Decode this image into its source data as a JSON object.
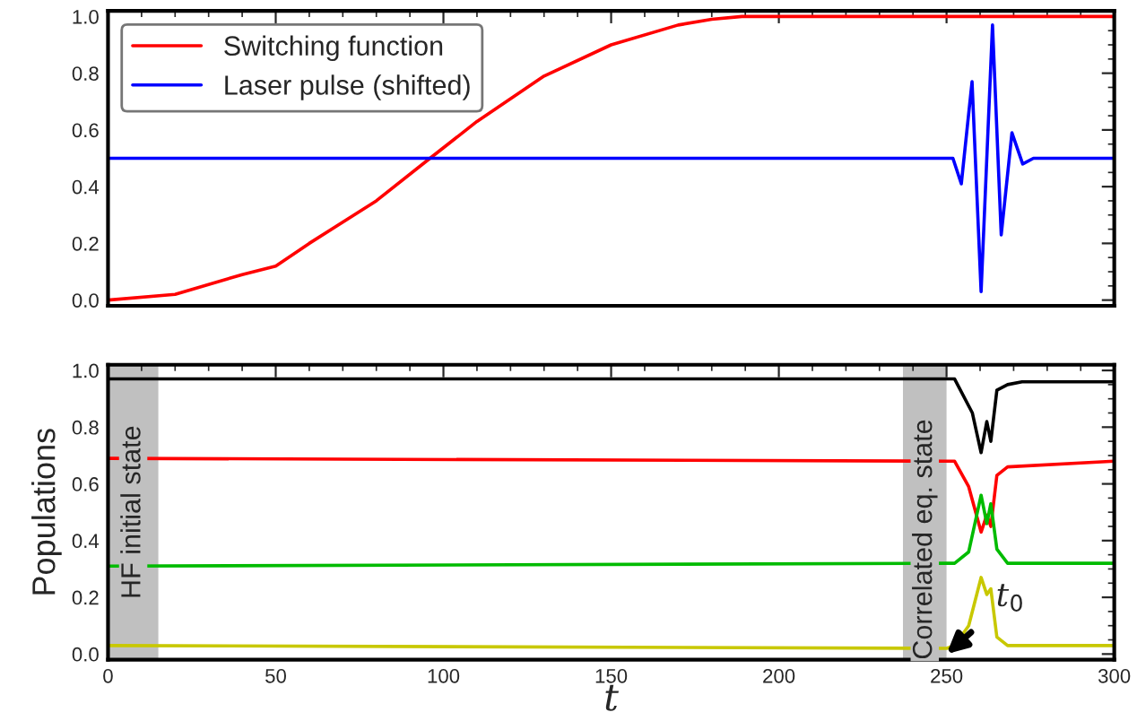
{
  "chart_data": [
    {
      "type": "line",
      "xlim": [
        0,
        300
      ],
      "ylim": [
        -0.02,
        1.02
      ],
      "yticks": [
        {
          "value": 0,
          "label": "0.0"
        },
        {
          "value": 0.2,
          "label": "0.2"
        },
        {
          "value": 0.4,
          "label": "0.4"
        },
        {
          "value": 0.6,
          "label": "0.6"
        },
        {
          "value": 0.8,
          "label": "0.8"
        },
        {
          "value": 1,
          "label": "1.0"
        }
      ],
      "xticks": [
        0,
        50,
        100,
        150,
        200,
        250,
        300
      ],
      "tick_labels": "y",
      "legend": "top left",
      "grid": false,
      "series": [
        {
          "name": "Switching function",
          "color": "#ff0000",
          "x": [
            0,
            20,
            40,
            50,
            60,
            80,
            96,
            110,
            130,
            150,
            170,
            180,
            189,
            200,
            300
          ],
          "values": [
            0,
            0.02,
            0.09,
            0.12,
            0.2,
            0.35,
            0.5,
            0.63,
            0.79,
            0.9,
            0.97,
            0.99,
            1,
            1,
            1
          ]
        },
        {
          "name": "Laser pulse (shifted)",
          "color": "#0000ff",
          "x": [
            0,
            251.9,
            254.4,
            257.6,
            260.3,
            263.7,
            266.3,
            269.5,
            272.7,
            275.9,
            300
          ],
          "values": [
            0.5,
            0.5,
            0.41,
            0.77,
            0.03,
            0.97,
            0.23,
            0.59,
            0.48,
            0.5,
            0.5
          ]
        }
      ]
    },
    {
      "type": "line",
      "xlim": [
        0,
        300
      ],
      "ylim": [
        -0.02,
        1.02
      ],
      "yticks": [
        {
          "value": 0,
          "label": "0.0"
        },
        {
          "value": 0.2,
          "label": "0.2"
        },
        {
          "value": 0.4,
          "label": "0.4"
        },
        {
          "value": 0.6,
          "label": "0.6"
        },
        {
          "value": 0.8,
          "label": "0.8"
        },
        {
          "value": 1,
          "label": "1.0"
        }
      ],
      "xticks": [
        0,
        50,
        100,
        150,
        200,
        250,
        300
      ],
      "xlabel": "t",
      "ylabel": "Populations",
      "grid": false,
      "bands": [
        {
          "axis": "x",
          "from": 0,
          "to": 15,
          "label": "HF initial state",
          "color": "#c0c0c0"
        },
        {
          "axis": "x",
          "from": 237,
          "to": 250,
          "label": "Correlated eq. state",
          "color": "#c0c0c0"
        }
      ],
      "annotations": [
        {
          "text": "t$_{0}$",
          "x": 250,
          "y": 0
        }
      ],
      "series": [
        {
          "color": "#000000",
          "x": [
            0,
            250,
            252.4,
            257.7,
            260.3,
            262,
            263.2,
            265,
            268.2,
            272.5,
            300
          ],
          "values": [
            0.97,
            0.97,
            0.97,
            0.85,
            0.71,
            0.82,
            0.75,
            0.93,
            0.95,
            0.96,
            0.96
          ]
        },
        {
          "color": "#ff0000",
          "x": [
            0,
            250,
            252.4,
            256.6,
            260.3,
            262,
            263.2,
            265,
            268.2,
            300
          ],
          "values": [
            0.69,
            0.68,
            0.68,
            0.59,
            0.43,
            0.49,
            0.45,
            0.63,
            0.66,
            0.68
          ]
        },
        {
          "color": "#00bb00",
          "x": [
            0,
            250,
            252.4,
            256.6,
            260.3,
            262,
            263.2,
            265,
            268.2,
            300
          ],
          "values": [
            0.31,
            0.32,
            0.32,
            0.36,
            0.56,
            0.46,
            0.53,
            0.37,
            0.32,
            0.32
          ]
        },
        {
          "color": "#c8c800",
          "x": [
            0,
            250,
            252.4,
            256.6,
            260.3,
            262,
            263.2,
            265,
            268.2,
            300
          ],
          "values": [
            0.03,
            0.02,
            0.03,
            0.1,
            0.27,
            0.21,
            0.23,
            0.06,
            0.03,
            0.03
          ]
        }
      ]
    }
  ]
}
